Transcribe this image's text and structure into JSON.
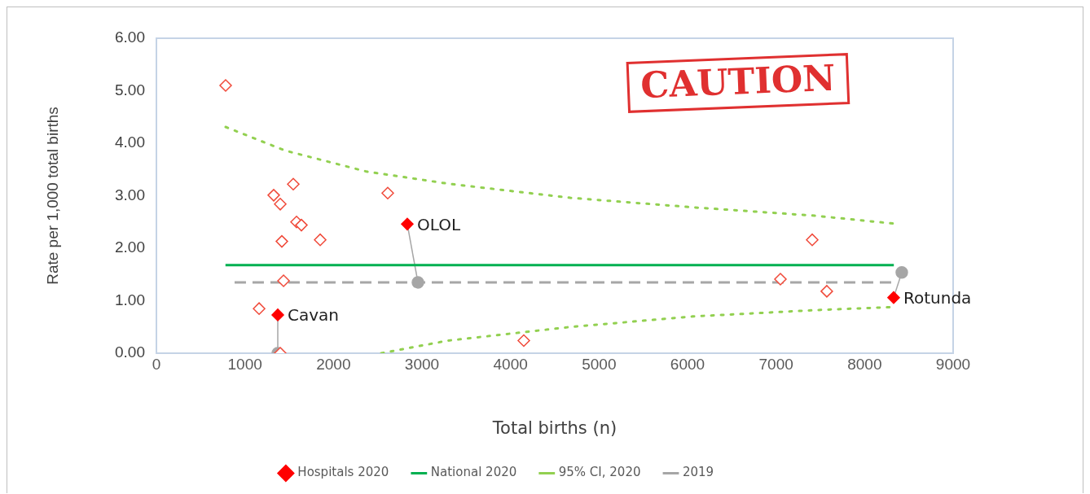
{
  "chart_data": {
    "type": "scatter",
    "xlabel": "Total births (n)",
    "ylabel": "Rate per 1,000 total births",
    "xlim": [
      0,
      9000
    ],
    "xticks": [
      0,
      1000,
      2000,
      3000,
      4000,
      5000,
      6000,
      7000,
      8000,
      9000
    ],
    "ylim": [
      0,
      6
    ],
    "yticks": [
      {
        "value": 0,
        "label": "0.00"
      },
      {
        "value": 1,
        "label": "1.00"
      },
      {
        "value": 2,
        "label": "2.00"
      },
      {
        "value": 3,
        "label": "3.00"
      },
      {
        "value": 4,
        "label": "4.00"
      },
      {
        "value": 5,
        "label": "5.00"
      },
      {
        "value": 6,
        "label": "6.00"
      }
    ],
    "grid": false,
    "legend": "bottom",
    "series": [
      {
        "name": "Hospitals 2020",
        "marker": "diamond",
        "color": "#ff0000",
        "x": [
          2834,
          1371,
          8328
        ],
        "values": [
          2.46,
          0.73,
          1.06
        ]
      },
      {
        "marker": "diamond",
        "color": "#f04a3a",
        "x": [
          782,
          1325,
          1546,
          1399,
          1583,
          1638,
          1417,
          1850,
          2613,
          1436,
          1160,
          1399,
          4150,
          7049,
          7408,
          7573
        ],
        "values": [
          5.1,
          3.01,
          3.22,
          2.84,
          2.5,
          2.44,
          2.13,
          2.16,
          3.05,
          1.38,
          0.85,
          0.0,
          0.24,
          1.41,
          2.16,
          1.18
        ]
      },
      {
        "name": "National 2020",
        "type": "line",
        "marker": "none",
        "line_style": "solid",
        "color": "#00b050",
        "x": [
          780,
          8330
        ],
        "values": [
          1.68,
          1.68
        ]
      },
      {
        "name": "95% CI, 2020",
        "type": "line",
        "marker": "none",
        "line_style": "dotted",
        "color": "#92d050",
        "x": [
          782,
          1454,
          2374,
          3294,
          4675,
          6055,
          7435,
          8328
        ],
        "values": [
          4.31,
          3.86,
          3.46,
          3.23,
          2.96,
          2.78,
          2.62,
          2.47
        ]
      },
      {
        "type": "line",
        "marker": "none",
        "line_style": "dotted",
        "color": "#92d050",
        "x": [
          2540,
          3294,
          4675,
          6055,
          7435,
          8328
        ],
        "values": [
          0.0,
          0.24,
          0.5,
          0.7,
          0.82,
          0.88
        ]
      },
      {
        "name": "2019",
        "type": "line",
        "marker": "none",
        "line_style": "dashed",
        "color": "#a6a6a6",
        "x": [
          883,
          8355
        ],
        "values": [
          1.35,
          1.35
        ]
      },
      {
        "marker": "circle",
        "color": "#a6a6a6",
        "x": [
          2954,
          1371,
          8420
        ],
        "values": [
          1.35,
          0.0,
          1.54
        ]
      }
    ],
    "annotations": [
      {
        "text": "OLOL",
        "x": 2834,
        "y": 2.46
      },
      {
        "text": "Cavan",
        "x": 1371,
        "y": 0.73
      },
      {
        "text": "Rotunda",
        "x": 8328,
        "y": 1.06
      },
      "CAUTION"
    ]
  }
}
